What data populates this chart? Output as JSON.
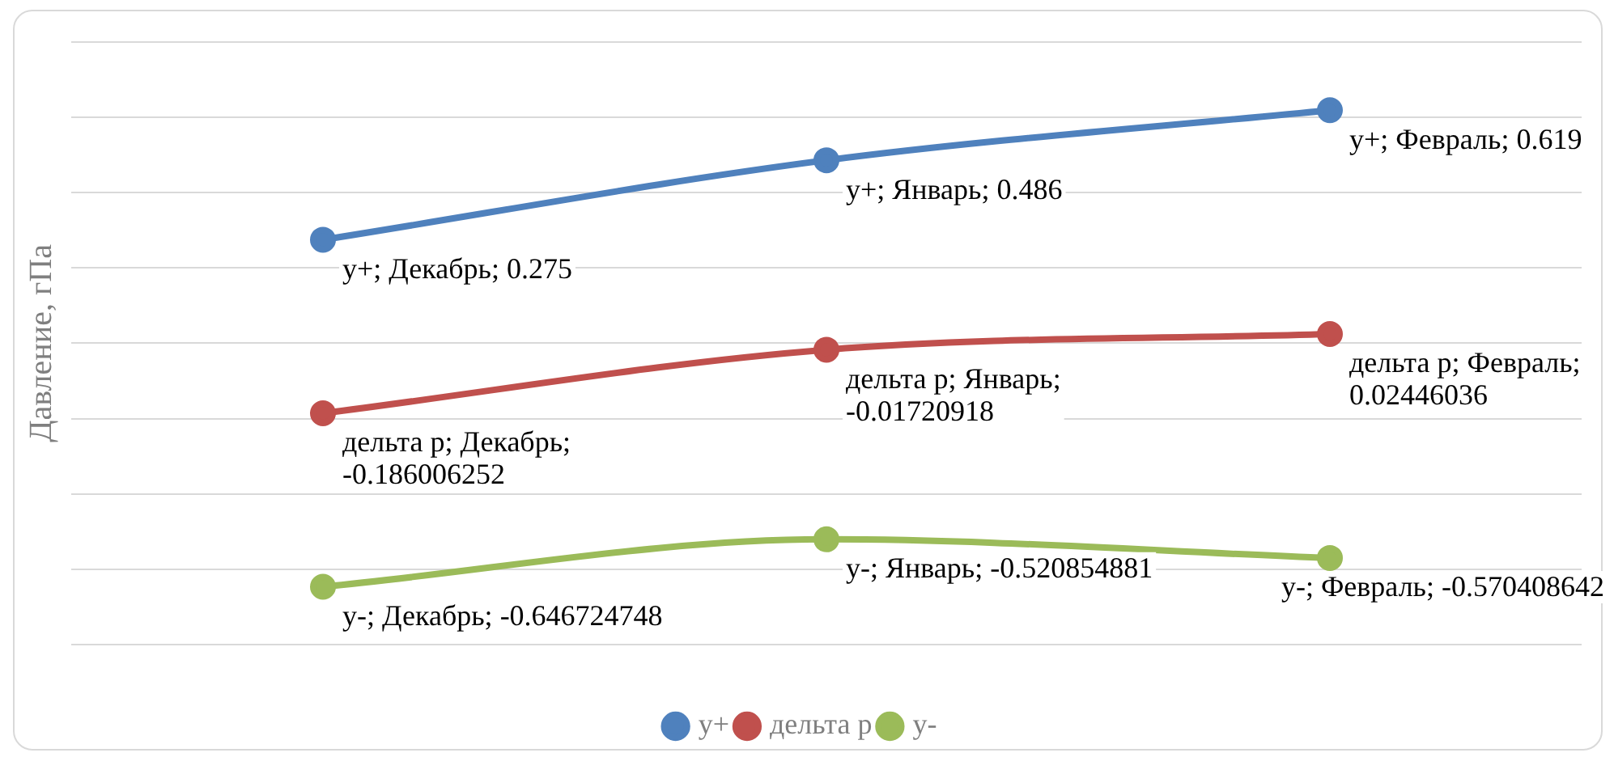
{
  "chart_data": {
    "type": "line",
    "ylabel": "Давление, гПа",
    "categories": [
      null,
      null,
      null
    ],
    "series": [
      {
        "name": "y+",
        "color": "#4f81bd",
        "values": [
          0.275,
          0.486,
          0.619
        ],
        "value_labels": [
          "y+; Декабрь; 0.275",
          "y+; Январь; 0.486",
          "y+; Февраль; 0.619"
        ]
      },
      {
        "name": "дельта р",
        "color": "#c0504d",
        "values": [
          -0.186006252,
          -0.01720918,
          0.02446036
        ],
        "value_labels": [
          "дельта р; Декабрь; -0.186006252",
          "дельта р; Январь; -0.01720918",
          "дельта р; Февраль; 0.02446036"
        ]
      },
      {
        "name": "y-",
        "color": "#9bbb59",
        "values": [
          -0.646724748,
          -0.520854881,
          -0.570408642
        ],
        "value_labels": [
          "y-; Декабрь; -0.646724748",
          "y-; Январь; -0.520854881",
          "y-; Февраль; -0.570408642"
        ]
      }
    ],
    "ylim": [
      -0.8,
      0.8
    ],
    "yticks": [
      {
        "value": -0.8,
        "label": null
      },
      {
        "value": -0.6,
        "label": null
      },
      {
        "value": -0.4,
        "label": null
      },
      {
        "value": -0.2,
        "label": null
      },
      {
        "value": 0,
        "label": null
      },
      {
        "value": 0.2,
        "label": null
      },
      {
        "value": 0.4,
        "label": null
      },
      {
        "value": 0.6,
        "label": null
      },
      {
        "value": 0.8,
        "label": null
      }
    ],
    "grid": "y",
    "legend": "bottom",
    "marker": "circle",
    "line_style": "solid"
  }
}
